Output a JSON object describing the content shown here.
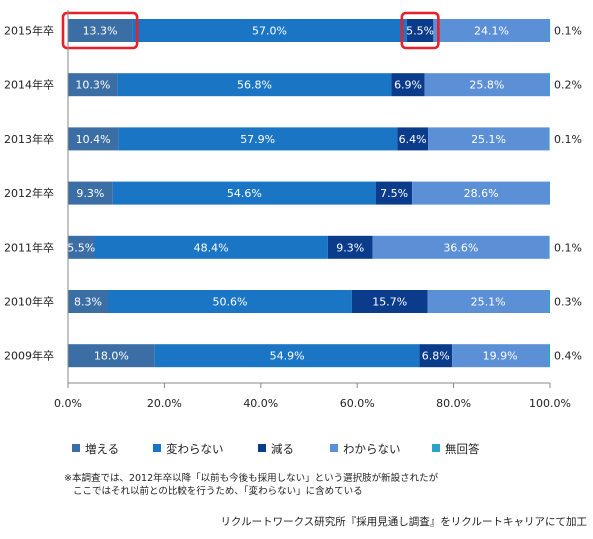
{
  "chart_data": {
    "type": "bar",
    "orientation": "horizontal",
    "stacked": "percent",
    "categories": [
      "2015年卒",
      "2014年卒",
      "2013年卒",
      "2012年卒",
      "2011年卒",
      "2010年卒",
      "2009年卒"
    ],
    "series": [
      {
        "name": "増える",
        "color": "#3a6ea5",
        "values": [
          13.3,
          10.3,
          10.4,
          9.3,
          5.5,
          8.3,
          18.0
        ]
      },
      {
        "name": "変わらない",
        "color": "#1a75c4",
        "values": [
          57.0,
          56.8,
          57.9,
          54.6,
          48.4,
          50.6,
          54.9
        ]
      },
      {
        "name": "減る",
        "color": "#0b3c8c",
        "values": [
          5.5,
          6.9,
          6.4,
          7.5,
          9.3,
          15.7,
          6.8
        ]
      },
      {
        "name": "わからない",
        "color": "#5b8fd6",
        "values": [
          24.1,
          25.8,
          25.1,
          28.6,
          36.6,
          25.1,
          19.9
        ]
      },
      {
        "name": "無回答",
        "color": "#2aa3c7",
        "values": [
          0.1,
          0.2,
          0.1,
          null,
          0.1,
          0.3,
          0.4
        ]
      }
    ],
    "data_labels": [
      [
        "13.3%",
        "57.0%",
        "5.5%",
        "24.1%",
        "0.1%"
      ],
      [
        "10.3%",
        "56.8%",
        "6.9%",
        "25.8%",
        "0.2%"
      ],
      [
        "10.4%",
        "57.9%",
        "6.4%",
        "25.1%",
        "0.1%"
      ],
      [
        "9.3%",
        "54.6%",
        "7.5%",
        "28.6%",
        ""
      ],
      [
        "5.5%",
        "48.4%",
        "9.3%",
        "36.6%",
        "0.1%"
      ],
      [
        "8.3%",
        "50.6%",
        "15.7%",
        "25.1%",
        "0.3%"
      ],
      [
        "18.0%",
        "54.9%",
        "6.8%",
        "19.9%",
        "0.4%"
      ]
    ],
    "xlim": [
      0,
      100
    ],
    "xticks": [
      "0.0%",
      "20.0%",
      "40.0%",
      "60.0%",
      "80.0%",
      "100.0%"
    ],
    "grid": false,
    "legend_position": "bottom",
    "highlight": {
      "category": "2015年卒",
      "series": [
        "増える",
        "減る"
      ],
      "color": "#e8202a"
    }
  },
  "notes": [
    "※本調査では、2012年卒以降「以前も今後も採用しない」という選択肢が新設されたが",
    "ここではそれ以前との比較を行うため、「変わらない」に含めている"
  ],
  "source": "リクルートワークス研究所『採用見通し調査』をリクルートキャリアにて加工"
}
